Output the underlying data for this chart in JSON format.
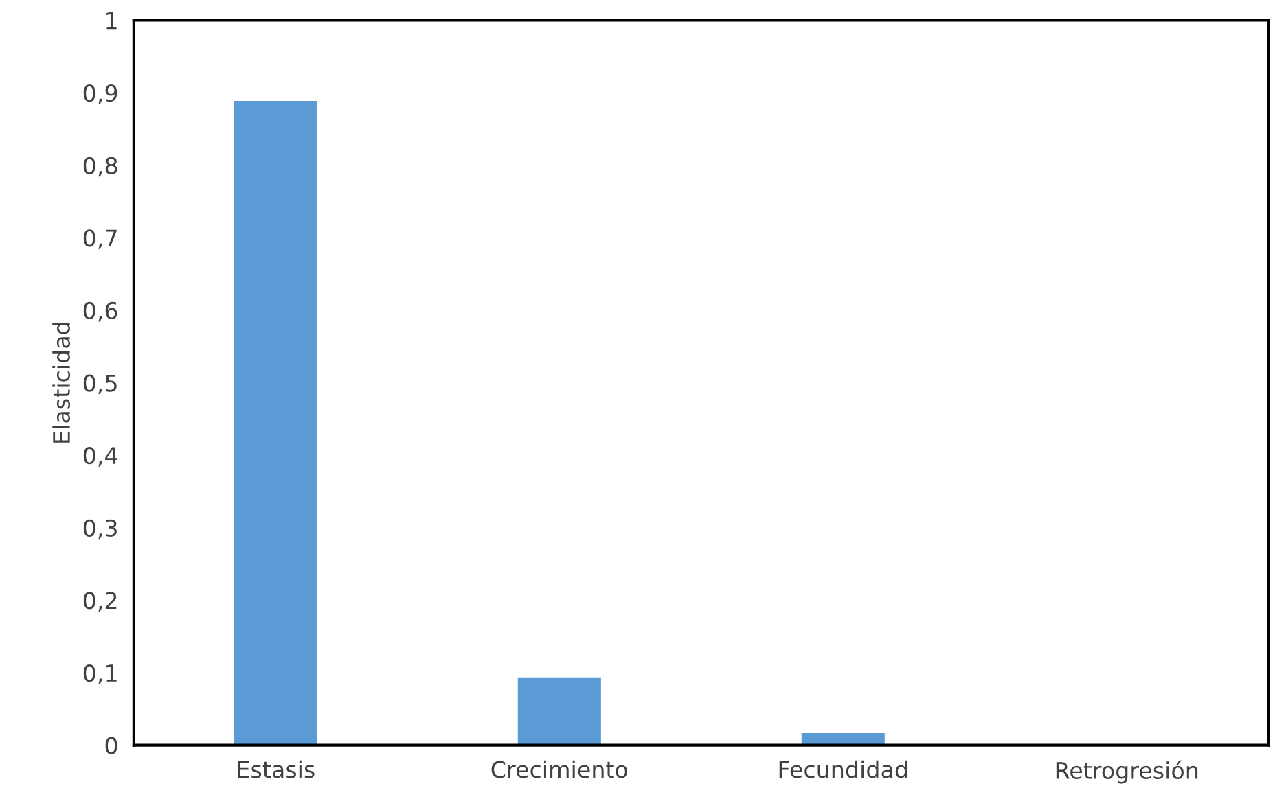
{
  "chart_data": {
    "type": "bar",
    "ylabel": "Elasticidad",
    "categories": [
      "Estasis",
      "Crecimiento",
      "Fecundidad",
      "Retrogresión"
    ],
    "values": [
      0.89,
      0.095,
      0.018,
      null
    ],
    "color": "#5b9bd5",
    "ylim": [
      0,
      1
    ],
    "yticks": [
      0,
      {
        "value": 0.1,
        "label": "0,1"
      },
      {
        "value": 0.2,
        "label": "0,2"
      },
      {
        "value": 0.3,
        "label": "0,3"
      },
      {
        "value": 0.4,
        "label": "0,4"
      },
      {
        "value": 0.5,
        "label": "0,5"
      },
      {
        "value": 0.6,
        "label": "0,6"
      },
      {
        "value": 0.7,
        "label": "0,7"
      },
      {
        "value": 0.8,
        "label": "0,8"
      },
      {
        "value": 0.9,
        "label": "0,9"
      },
      1
    ],
    "grid": false,
    "legend": false
  }
}
